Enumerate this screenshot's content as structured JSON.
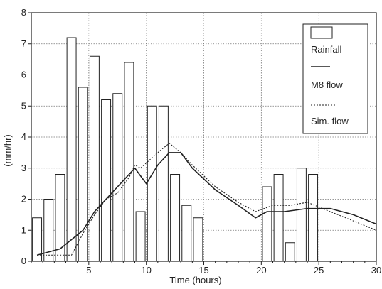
{
  "chart_data": {
    "type": "bar",
    "title": "",
    "xlabel": "Time (hours)",
    "ylabel": "(mm/hr)",
    "xlim": [
      0,
      30
    ],
    "ylim": [
      0,
      8
    ],
    "xticks": [
      5,
      10,
      15,
      20,
      25,
      30
    ],
    "yticks": [
      0,
      1,
      2,
      3,
      4,
      5,
      6,
      7,
      8
    ],
    "grid": true,
    "legend_position": "top-right",
    "bar_width": 0.8,
    "colors": {
      "bar_fill": "#ffffff",
      "bar_stroke": "#222222",
      "line": "#222222",
      "grid": "#777777"
    },
    "series": [
      {
        "name": "Rainfall",
        "type": "bar",
        "x": [
          0.5,
          1.5,
          2.5,
          3.5,
          4.5,
          5.5,
          6.5,
          7.5,
          8.5,
          9.5,
          10.5,
          11.5,
          12.5,
          13.5,
          14.5,
          20.5,
          21.5,
          22.5,
          23.5,
          24.5
        ],
        "values": [
          1.4,
          2.0,
          2.8,
          7.2,
          5.6,
          6.6,
          5.2,
          5.4,
          6.4,
          1.6,
          5.0,
          5.0,
          2.8,
          1.8,
          1.4,
          2.4,
          2.8,
          0.6,
          3.0,
          2.8
        ]
      },
      {
        "name": "M8 flow",
        "type": "line",
        "style": "solid",
        "x": [
          0.5,
          1.5,
          2.5,
          3.5,
          4.5,
          5.5,
          6.5,
          7.5,
          8.5,
          9.0,
          10.0,
          11.0,
          12.0,
          13.0,
          14.0,
          16.0,
          18.0,
          19.5,
          20.5,
          22.0,
          24.0,
          26.0,
          28.0,
          30.0
        ],
        "values": [
          0.2,
          0.3,
          0.4,
          0.7,
          1.0,
          1.6,
          2.0,
          2.4,
          2.8,
          3.0,
          2.5,
          3.1,
          3.5,
          3.5,
          3.0,
          2.3,
          1.8,
          1.4,
          1.6,
          1.6,
          1.7,
          1.7,
          1.5,
          1.2
        ]
      },
      {
        "name": "Sim. flow",
        "type": "line",
        "style": "dotted",
        "x": [
          0.5,
          2.0,
          3.5,
          4.5,
          5.5,
          6.5,
          7.5,
          8.5,
          9.0,
          9.5,
          11.0,
          12.0,
          13.0,
          14.0,
          16.0,
          18.0,
          19.5,
          21.0,
          22.5,
          24.0,
          26.0,
          28.0,
          30.0
        ],
        "values": [
          0.2,
          0.2,
          0.2,
          0.9,
          1.5,
          2.0,
          2.2,
          2.7,
          3.1,
          3.0,
          3.5,
          3.8,
          3.5,
          3.1,
          2.4,
          1.9,
          1.6,
          1.8,
          1.8,
          1.9,
          1.6,
          1.3,
          1.0
        ]
      }
    ]
  }
}
